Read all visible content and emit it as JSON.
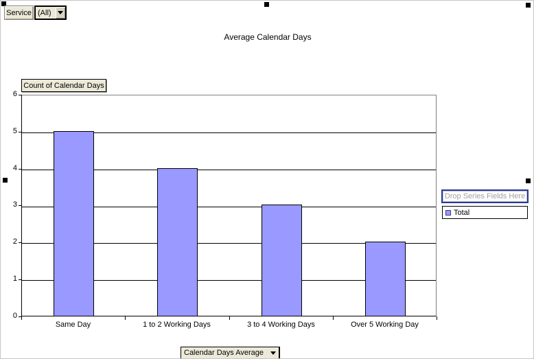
{
  "chart_data": {
    "type": "bar",
    "title": "Average Calendar Days",
    "categories": [
      "Same Day",
      "1 to 2 Working Days",
      "3 to 4 Working Days",
      "Over 5 Working Day"
    ],
    "values": [
      5,
      4,
      3,
      2
    ],
    "series": [
      {
        "name": "Total",
        "values": [
          5,
          4,
          3,
          2
        ]
      }
    ],
    "xlabel": "",
    "ylabel": "",
    "ylim": [
      0,
      6
    ],
    "yticks": [
      0,
      1,
      2,
      3,
      4,
      5,
      6
    ],
    "grid": true,
    "legend_position": "right",
    "bar_color": "#9999FF",
    "bar_border_color": "#000000"
  },
  "pivot_controls": {
    "page_field_label": "Service",
    "page_field_value": "(All)",
    "data_field_button": "Count of Calendar Days",
    "category_field_button": "Calendar Days Average",
    "drop_series_text": "Drop Series Fields Here"
  },
  "legend": {
    "items": [
      {
        "label": "Total",
        "color": "#9999FF"
      }
    ]
  }
}
